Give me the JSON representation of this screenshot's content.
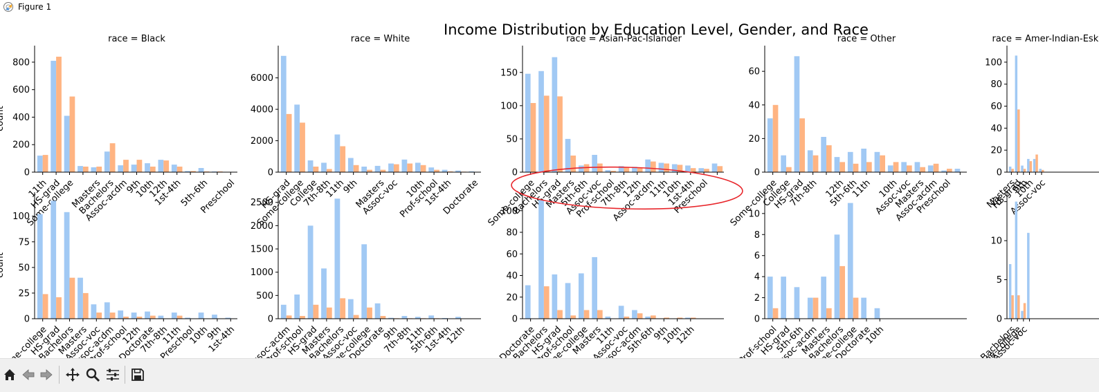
{
  "window": {
    "title": "Figure 1"
  },
  "toolbar": {
    "buttons": [
      {
        "name": "home-icon",
        "enabled": true
      },
      {
        "name": "back-arrow-icon",
        "enabled": false
      },
      {
        "name": "forward-arrow-icon",
        "enabled": false
      },
      {
        "name": "pan-move-icon",
        "enabled": true
      },
      {
        "name": "zoom-magnifier-icon",
        "enabled": true
      },
      {
        "name": "configure-subplots-icon",
        "enabled": true
      },
      {
        "name": "save-figure-icon",
        "enabled": true
      }
    ]
  },
  "colors": {
    "series_a": "#a1c9f4",
    "series_b": "#ffb482",
    "annotation": "#e8262b",
    "axis": "#000000"
  },
  "figure": {
    "title": "Income Distribution by Education Level, Gender, and Race",
    "ylabel": "count"
  },
  "chart_data": [
    {
      "type": "bar",
      "title": "race = Black",
      "ylim": [
        0,
        880
      ],
      "yticks": [
        0,
        200,
        400,
        600,
        800
      ],
      "categories": [
        "11th",
        "HS-grad",
        "Some-college",
        "",
        "Masters",
        "Bachelors",
        "Assoc-acdm",
        "9th",
        "10th",
        "12th",
        "1st-4th",
        "",
        "5th-6th",
        "",
        "Preschool"
      ],
      "series": [
        {
          "values": [
            120,
            810,
            410,
            45,
            35,
            150,
            50,
            55,
            65,
            90,
            55,
            8,
            30,
            5,
            2
          ]
        },
        {
          "values": [
            125,
            840,
            550,
            40,
            40,
            210,
            90,
            90,
            40,
            85,
            40,
            8,
            5,
            5,
            2
          ]
        }
      ]
    },
    {
      "type": "bar",
      "title": "race = White",
      "ylim": [
        0,
        7700
      ],
      "yticks": [
        0,
        2000,
        4000,
        6000
      ],
      "categories": [
        "HS-grad",
        "Some-college",
        "College",
        "7th-8th",
        "11th",
        "9th",
        "",
        "Masters",
        "Assoc-voc",
        "",
        "10th",
        "Prof-school",
        "1st-4th",
        "",
        "Doctorate"
      ],
      "series": [
        {
          "values": [
            7400,
            4300,
            750,
            600,
            2400,
            900,
            350,
            400,
            550,
            800,
            600,
            300,
            150,
            100,
            50
          ]
        },
        {
          "values": [
            3700,
            3150,
            350,
            200,
            1650,
            450,
            150,
            150,
            500,
            550,
            450,
            150,
            50,
            30,
            10
          ]
        }
      ]
    },
    {
      "type": "bar",
      "title": "race = Asian-Pac-Islander",
      "ylim": [
        0,
        182
      ],
      "yticks": [
        0,
        50,
        100,
        150
      ],
      "categories": [
        "Some-college",
        "Bachelors",
        "HS-grad",
        "Masters",
        "5th-6th",
        "Assoc-voc",
        "Prof-school",
        "7th-8th",
        "12th",
        "Assoc-acdm",
        "11th",
        "10th",
        "1st-4th",
        "Preschool",
        ""
      ],
      "series": [
        {
          "values": [
            148,
            152,
            173,
            50,
            10,
            26,
            3,
            9,
            8,
            19,
            14,
            12,
            10,
            6,
            13
          ]
        },
        {
          "values": [
            104,
            115,
            114,
            25,
            12,
            13,
            2,
            7,
            7,
            16,
            13,
            11,
            6,
            5,
            9
          ]
        }
      ]
    },
    {
      "type": "bar",
      "title": "race = Other",
      "ylim": [
        0,
        72
      ],
      "yticks": [
        0,
        20,
        40,
        60
      ],
      "categories": [
        "Some-college",
        "College",
        "HS-grad",
        "7th-8th",
        "",
        "12th",
        "5th-6th",
        "11th",
        "",
        "10th",
        "Assoc-voc",
        "Masters",
        "Assoc-acdm",
        "Preschool",
        ""
      ],
      "series": [
        {
          "values": [
            32,
            10,
            69,
            13,
            21,
            9,
            12,
            14,
            12,
            4,
            6,
            6,
            4,
            1,
            2
          ]
        },
        {
          "values": [
            40,
            3,
            32,
            10,
            16,
            6,
            5,
            6,
            10,
            6,
            4,
            3,
            5,
            2,
            0
          ]
        }
      ]
    },
    {
      "type": "bar",
      "title": "race = Amer-Indian-Eskimo",
      "ylim": [
        0,
        110
      ],
      "yticks": [
        0,
        20,
        40,
        60,
        80,
        100
      ],
      "categories": [
        "Masters",
        "HS-grad",
        "9th",
        "10th",
        "",
        "Assoc-voc"
      ],
      "series": [
        {
          "values": [
            5,
            106,
            6,
            12,
            12,
            3
          ]
        },
        {
          "values": [
            3,
            57,
            3,
            10,
            16,
            2
          ]
        }
      ]
    },
    {
      "type": "bar",
      "ylim": [
        0,
        118
      ],
      "yticks": [
        0,
        25,
        50,
        75,
        100
      ],
      "categories": [
        "Some-college",
        "HS-grad",
        "Bachelors",
        "Masters",
        "Assoc-voc",
        "Assoc-acdm",
        "Prof-school",
        "12th",
        "Doctorate",
        "7th-8th",
        "11th",
        "Preschool",
        "10th",
        "9th",
        "1st-4th"
      ],
      "series": [
        {
          "values": [
            102,
            115,
            104,
            40,
            14,
            16,
            8,
            6,
            7,
            3,
            6,
            1,
            6,
            4,
            1
          ]
        },
        {
          "values": [
            24,
            21,
            40,
            25,
            6,
            6,
            2,
            2,
            3,
            0,
            3,
            0,
            0,
            0,
            0
          ]
        }
      ]
    },
    {
      "type": "bar",
      "ylim": [
        0,
        2600
      ],
      "yticks": [
        0,
        500,
        1000,
        1500,
        2000,
        2500
      ],
      "categories": [
        "Assoc-acdm",
        "Prof-school",
        "HS-grad",
        "Masters",
        "Bachelors",
        "Assoc-voc",
        "Some-college",
        "Doctorate",
        "9th",
        "7th-8th",
        "11th",
        "5th-6th",
        "1st-4th",
        "12th"
      ],
      "series": [
        {
          "values": [
            300,
            520,
            2000,
            1080,
            2580,
            420,
            1600,
            330,
            20,
            60,
            40,
            70,
            15,
            40
          ]
        },
        {
          "values": [
            70,
            60,
            300,
            240,
            440,
            80,
            240,
            60,
            10,
            10,
            10,
            10,
            5,
            5
          ]
        }
      ]
    },
    {
      "type": "bar",
      "ylim": [
        0,
        112
      ],
      "yticks": [
        0,
        20,
        40,
        60,
        80,
        100
      ],
      "categories": [
        "Doctorate",
        "Bachelors",
        "HS-grad",
        "Prof-school",
        "Some-college",
        "Masters",
        "11th",
        "Assoc-voc",
        "Assoc-acdm",
        "5th-6th",
        "9th",
        "10th",
        "12th"
      ],
      "series": [
        {
          "values": [
            31,
            110,
            41,
            33,
            42,
            57,
            2,
            12,
            8,
            2,
            0,
            0,
            1
          ]
        },
        {
          "values": [
            0,
            30,
            8,
            3,
            8,
            8,
            0,
            2,
            5,
            3,
            1,
            1,
            1
          ]
        }
      ]
    },
    {
      "type": "bar",
      "ylim": [
        0,
        11.5
      ],
      "yticks": [
        0,
        2,
        4,
        6,
        8,
        10
      ],
      "categories": [
        "Prof-school",
        "HS-grad",
        "5th-6th",
        "Assoc-acdm",
        "Masters",
        "Bachelors",
        "Some-college",
        "Doctorate",
        "10th"
      ],
      "series": [
        {
          "values": [
            4,
            4,
            3,
            2,
            4,
            8,
            11,
            2,
            1
          ]
        },
        {
          "values": [
            1,
            0,
            0,
            2,
            1,
            5,
            2,
            0,
            0
          ]
        }
      ]
    },
    {
      "type": "bar",
      "ylim": [
        0,
        15.5
      ],
      "yticks": [
        0,
        5,
        10,
        15
      ],
      "categories": [
        "Bachelors",
        "Some-college",
        "Assoc-voc",
        ""
      ],
      "series": [
        {
          "values": [
            7,
            15,
            1,
            11
          ]
        },
        {
          "values": [
            3,
            3,
            2,
            0
          ]
        }
      ]
    }
  ]
}
